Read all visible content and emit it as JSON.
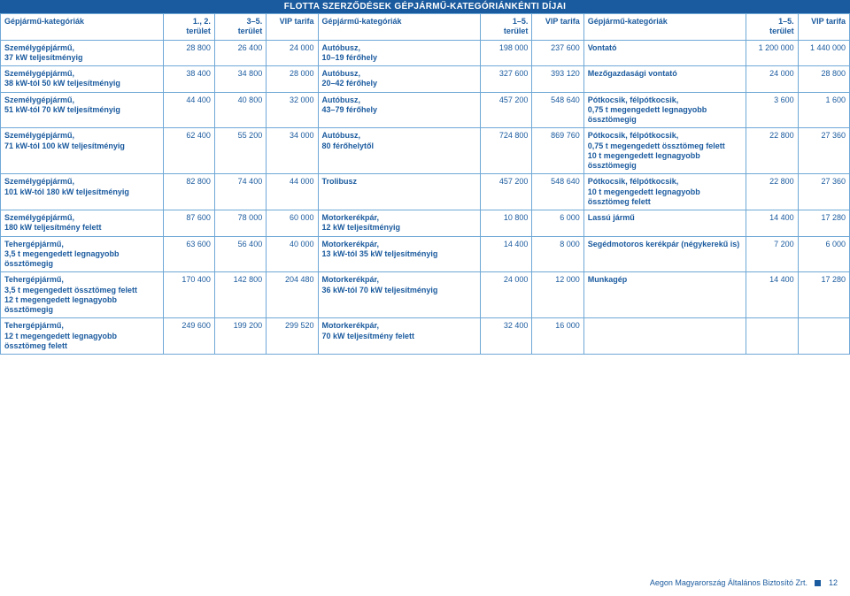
{
  "title": "FLOTTA SZERZŐDÉSEK GÉPJÁRMŰ-KATEGÓRIÁNKÉNTI DÍJAI",
  "headers": {
    "cat": "Gépjármű-kategóriák",
    "t12": "1., 2.\nterület",
    "t35": "3–5.\nterület",
    "vip": "VIP tarifa",
    "t15": "1–5.\nterület"
  },
  "rows": [
    {
      "a_cat": "Személygépjármű,\n37 kW teljesítményig",
      "a1": "28 800",
      "a2": "26 400",
      "a3": "24 000",
      "b_cat": "Autóbusz,\n10–19 férőhely",
      "b1": "198 000",
      "b2": "237 600",
      "c_cat": "Vontató",
      "c1": "1 200 000",
      "c2": "1 440 000"
    },
    {
      "a_cat": "Személygépjármű,\n38 kW-tól 50 kW teljesítményig",
      "a1": "38 400",
      "a2": "34 800",
      "a3": "28 000",
      "b_cat": "Autóbusz,\n20–42 férőhely",
      "b1": "327 600",
      "b2": "393 120",
      "c_cat": "Mezőgazdasági vontató",
      "c1": "24 000",
      "c2": "28 800"
    },
    {
      "a_cat": "Személygépjármű,\n51 kW-tól 70 kW teljesítményig",
      "a1": "44 400",
      "a2": "40 800",
      "a3": "32 000",
      "b_cat": "Autóbusz,\n43–79 férőhely",
      "b1": "457 200",
      "b2": "548 640",
      "c_cat": "Pótkocsik, félpótkocsik,\n0,75 t megengedett legnagyobb össztömegig",
      "c1": "3 600",
      "c2": "1 600"
    },
    {
      "a_cat": "Személygépjármű,\n71 kW-tól 100 kW teljesítményig",
      "a1": "62 400",
      "a2": "55 200",
      "a3": "34 000",
      "b_cat": "Autóbusz,\n80 férőhelytől",
      "b1": "724 800",
      "b2": "869 760",
      "c_cat": "Pótkocsik, félpótkocsik,\n0,75 t megengedett össztömeg felett\n10 t megengedett legnagyobb össztömegig",
      "c1": "22 800",
      "c2": "27 360"
    },
    {
      "a_cat": "Személygépjármű,\n101 kW-tól 180 kW teljesítményig",
      "a1": "82 800",
      "a2": "74 400",
      "a3": "44 000",
      "b_cat": "Trolibusz",
      "b1": "457 200",
      "b2": "548 640",
      "c_cat": "Pótkocsik, félpótkocsik,\n10 t megengedett legnagyobb össztömeg felett",
      "c1": "22 800",
      "c2": "27 360"
    },
    {
      "a_cat": "Személygépjármű,\n180 kW teljesítmény felett",
      "a1": "87 600",
      "a2": "78 000",
      "a3": "60 000",
      "b_cat": "Motorkerékpár,\n12 kW teljesítményig",
      "b1": "10 800",
      "b2": "6 000",
      "c_cat": "Lassú jármű",
      "c1": "14 400",
      "c2": "17 280"
    },
    {
      "a_cat": "Tehergépjármű,\n3,5 t megengedett legnagyobb össztömegig",
      "a1": "63 600",
      "a2": "56 400",
      "a3": "40 000",
      "b_cat": "Motorkerékpár,\n13 kW-tól 35 kW teljesítményig",
      "b1": "14 400",
      "b2": "8 000",
      "c_cat": "Segédmotoros kerékpár (négykerekű is)",
      "c1": "7 200",
      "c2": "6 000"
    },
    {
      "a_cat": "Tehergépjármű,\n3,5 t megengedett össztömeg felett\n12 t megengedett legnagyobb össztömegig",
      "a1": "170 400",
      "a2": "142 800",
      "a3": "204 480",
      "b_cat": "Motorkerékpár,\n36 kW-tól 70 kW teljesítményig",
      "b1": "24 000",
      "b2": "12 000",
      "c_cat": "Munkagép",
      "c1": "14 400",
      "c2": "17 280"
    },
    {
      "a_cat": "Tehergépjármű,\n12 t megengedett legnagyobb össztömeg felett",
      "a1": "249 600",
      "a2": "199 200",
      "a3": "299 520",
      "b_cat": "Motorkerékpár,\n70 kW teljesítmény felett",
      "b1": "32 400",
      "b2": "16 000",
      "c_cat": "",
      "c1": "",
      "c2": ""
    }
  ],
  "footer": {
    "text": "Aegon Magyarország Általános Biztosító Zrt.",
    "page": "12"
  }
}
